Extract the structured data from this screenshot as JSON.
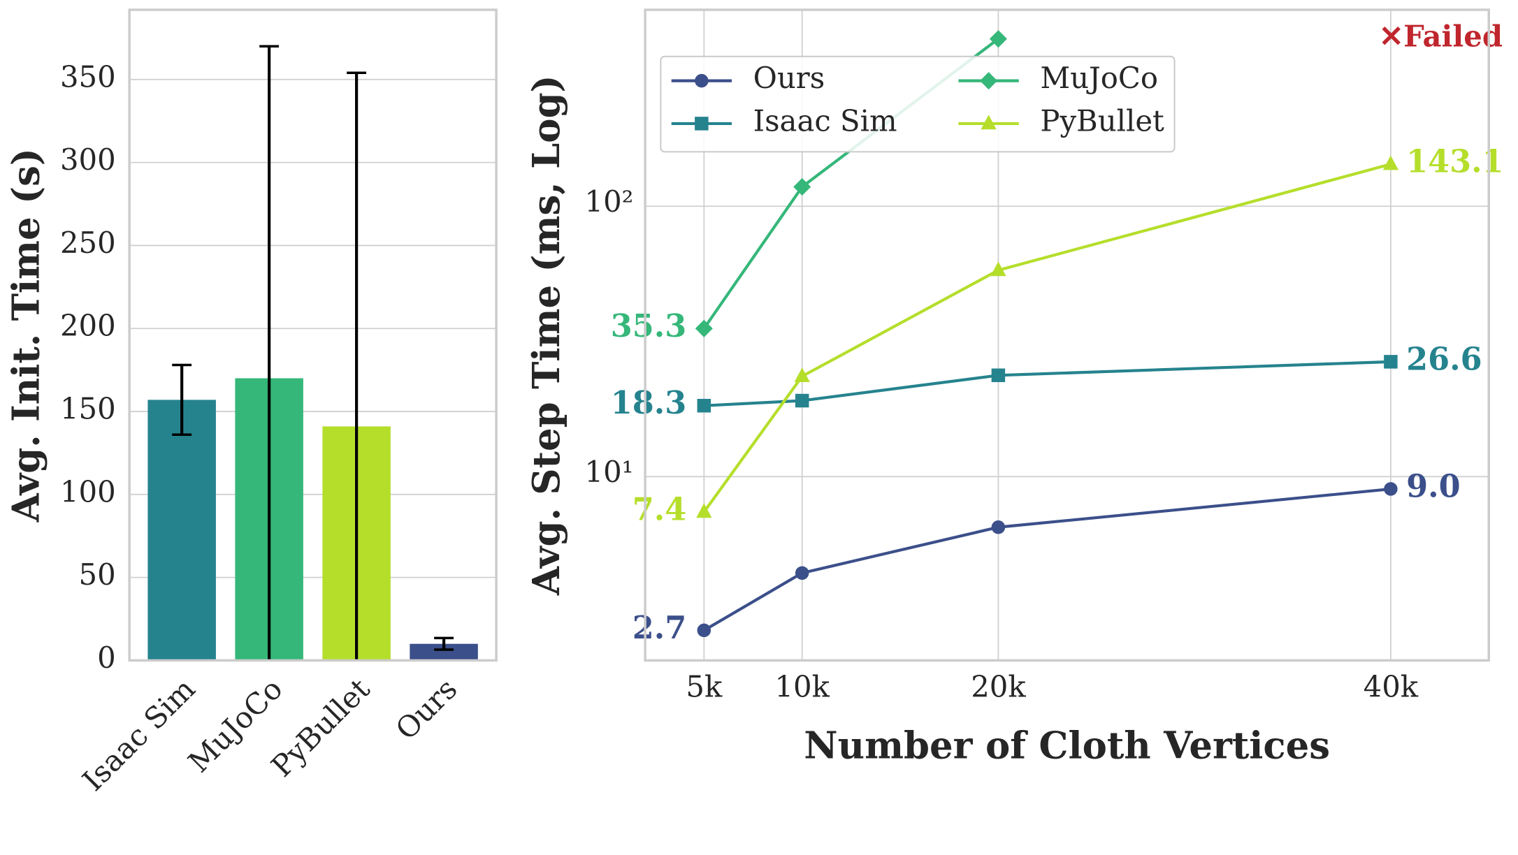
{
  "chart_data": [
    {
      "type": "bar",
      "ylabel": "Avg. Init. Time (s)",
      "categories": [
        "Isaac Sim",
        "MuJoCo",
        "PyBullet",
        "Ours"
      ],
      "values": [
        157,
        170,
        141,
        10
      ],
      "errors": [
        21,
        200,
        213,
        3.5
      ],
      "colors": [
        "#25838e",
        "#35b779",
        "#b5de2b",
        "#3b4f8a"
      ],
      "ylim": [
        0,
        392
      ],
      "yticks": [
        0,
        50,
        100,
        150,
        200,
        250,
        300,
        350
      ],
      "grid": true
    },
    {
      "type": "line",
      "xlabel": "Number of Cloth Vertices",
      "ylabel": "Avg. Step Time (ms, Log)",
      "x": [
        5000,
        10000,
        20000,
        40000
      ],
      "log_y": true,
      "grid": true,
      "legend": "upper left",
      "xlim": [
        2000,
        45000
      ],
      "xticks": [
        {
          "value": 5000,
          "label": "5k"
        },
        {
          "value": 10000,
          "label": "10k"
        },
        {
          "value": 20000,
          "label": "20k"
        },
        {
          "value": 40000,
          "label": "40k"
        }
      ],
      "ylim": [
        2.09,
        533
      ],
      "yticks": [
        {
          "value": 10,
          "label": "10¹"
        },
        {
          "value": 100,
          "label": "10²"
        }
      ],
      "series": [
        {
          "name": "Ours",
          "color": "#3b4f8a",
          "marker": "circle",
          "values": [
            2.7,
            4.4,
            6.5,
            9.0
          ],
          "value_labels": [
            "2.7",
            null,
            null,
            "9.0"
          ]
        },
        {
          "name": "Isaac Sim",
          "color": "#25838e",
          "marker": "square",
          "values": [
            18.3,
            19.1,
            23.7,
            26.6
          ],
          "value_labels": [
            "18.3",
            null,
            null,
            "26.6"
          ]
        },
        {
          "name": "MuJoCo",
          "color": "#35b779",
          "marker": "diamond",
          "values": [
            35.3,
            118,
            416,
            null
          ],
          "value_labels": [
            "35.3",
            null,
            null,
            null
          ]
        },
        {
          "name": "PyBullet",
          "color": "#b5de2b",
          "marker": "triangle",
          "values": [
            7.4,
            23.5,
            58,
            143.1
          ],
          "value_labels": [
            "7.4",
            null,
            null,
            "143.1"
          ]
        }
      ],
      "annotation": "✕Failed",
      "annotation_color": "#c0262d"
    }
  ]
}
